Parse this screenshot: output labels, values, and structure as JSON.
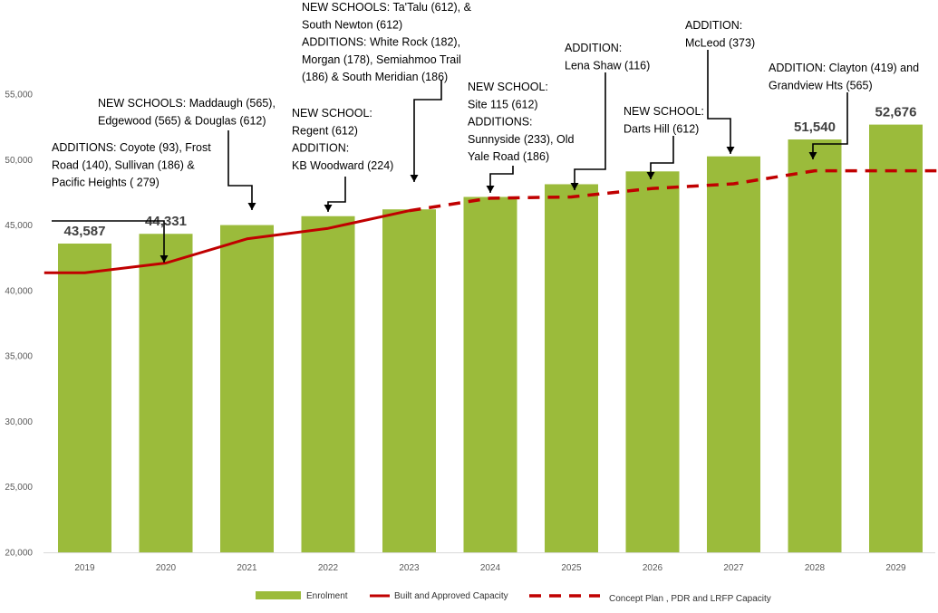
{
  "chart_data": {
    "type": "bar",
    "categories": [
      "2019",
      "2020",
      "2021",
      "2022",
      "2023",
      "2024",
      "2025",
      "2026",
      "2027",
      "2028",
      "2029"
    ],
    "series": [
      {
        "name": "Enrolment",
        "type": "bar",
        "color": "#9bbb3b",
        "values": [
          43587,
          44331,
          45000,
          45680,
          46200,
          47150,
          48120,
          49100,
          50250,
          51540,
          52676
        ]
      },
      {
        "name": "Built and Approved Capacity",
        "type": "line",
        "style": "solid",
        "color": "#c00000",
        "x": [
          2018.5,
          2019,
          2020,
          2021,
          2022,
          2023
        ],
        "values": [
          41350,
          41350,
          42100,
          43950,
          44750,
          46100
        ]
      },
      {
        "name": "Concept Plan , PDR and LRFP Capacity",
        "type": "line",
        "style": "dashed",
        "color": "#c00000",
        "x": [
          2023,
          2024,
          2025,
          2026,
          2027,
          2028,
          2029,
          2029.5
        ],
        "values": [
          46100,
          47050,
          47150,
          47800,
          48150,
          49150,
          49150,
          49150
        ]
      }
    ],
    "data_labels": [
      {
        "category": "2019",
        "text": "43,587"
      },
      {
        "category": "2020",
        "text": "44,331"
      },
      {
        "category": "2028",
        "text": "51,540"
      },
      {
        "category": "2029",
        "text": "52,676"
      }
    ],
    "yticks": [
      "20,000",
      "25,000",
      "30,000",
      "35,000",
      "40,000",
      "45,000",
      "50,000",
      "55,000"
    ],
    "ylim": [
      20000,
      56500
    ],
    "grid": false,
    "legend_position": "bottom",
    "annotations": [
      {
        "target": "2020",
        "lines": [
          "ADDITIONS: Coyote (93),  Frost",
          "Road (140), Sullivan (186) &",
          "Pacific Heights ( 279)"
        ]
      },
      {
        "target": "2021",
        "lines": [
          "NEW SCHOOLS: Maddaugh (565),",
          "Edgewood (565)  & Douglas (612)"
        ]
      },
      {
        "target": "2022",
        "lines": [
          "NEW SCHOOL:",
          "Regent  (612)",
          "ADDITION:",
          "KB Woodward   (224)"
        ]
      },
      {
        "target": "2023",
        "lines": [
          "NEW SCHOOLS: Ta'Talu (612), &",
          "South Newton (612)",
          "ADDITIONS:  White Rock (182),",
          "Morgan  (178), Semiahmoo Trail",
          "(186) & South Meridian (186)"
        ]
      },
      {
        "target": "2024",
        "lines": [
          "NEW SCHOOL:",
          "Site 115  (612)",
          "ADDITIONS:",
          "Sunnyside (233), Old",
          "Yale Road (186)"
        ]
      },
      {
        "target": "2025",
        "lines": [
          "ADDITION:",
          "Lena Shaw (116)"
        ]
      },
      {
        "target": "2026",
        "lines": [
          "NEW SCHOOL:",
          "Darts Hill (612)"
        ]
      },
      {
        "target": "2027",
        "lines": [
          "ADDITION:",
          "McLeod (373)"
        ]
      },
      {
        "target": "2028",
        "lines": [
          "ADDITION: Clayton (419) and",
          "Grandview Hts (565)"
        ]
      }
    ]
  }
}
